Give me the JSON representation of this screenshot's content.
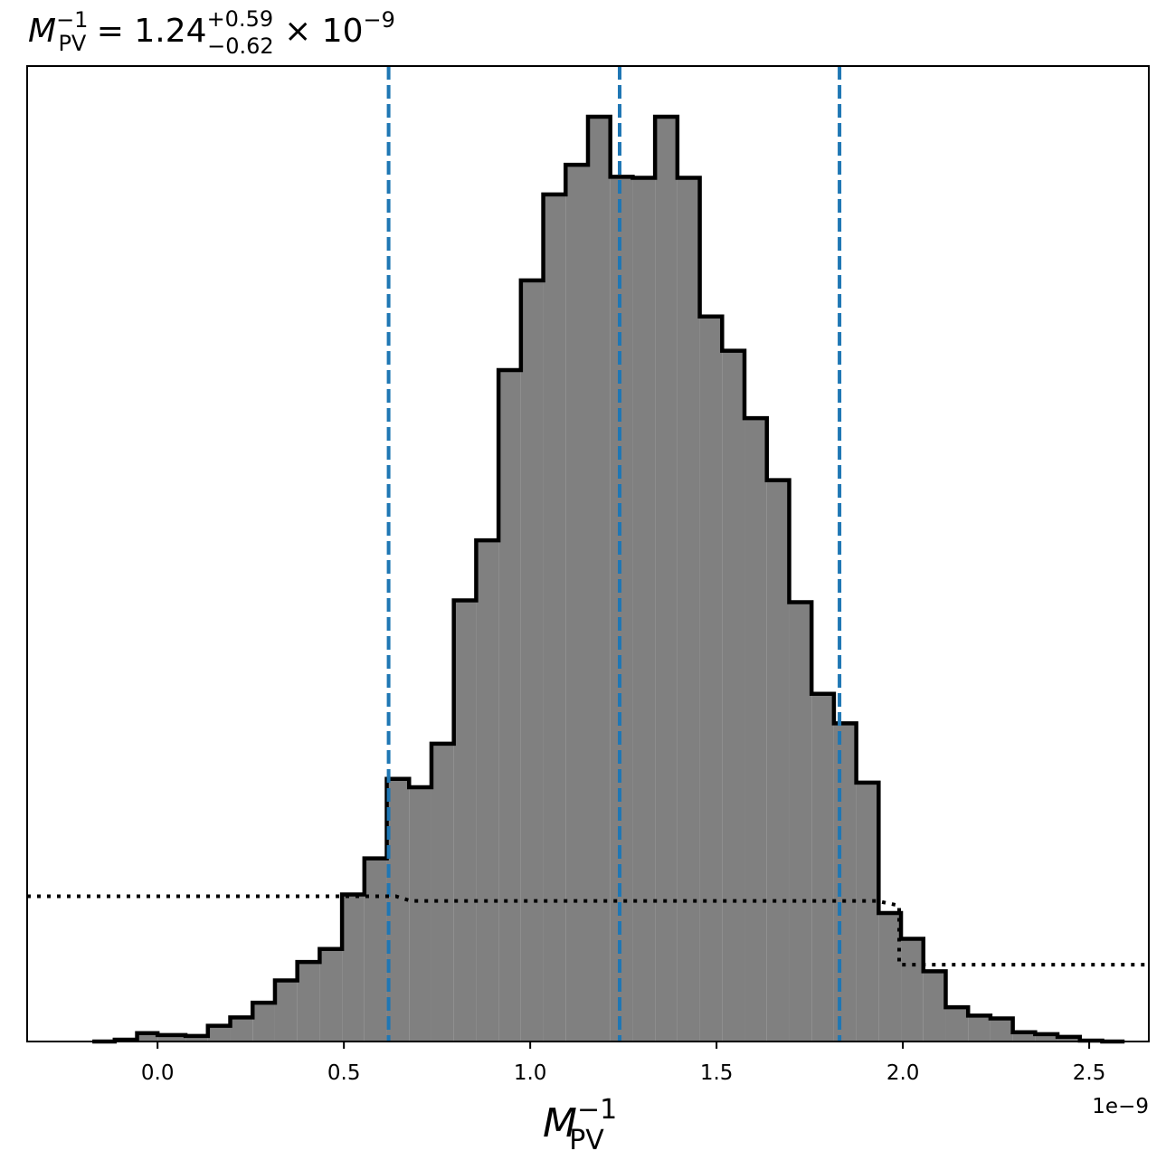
{
  "chart_data": {
    "type": "histogram",
    "title": {
      "symbol": "M",
      "subscript": "PV",
      "superscript": "−1",
      "equals": " = ",
      "median": "1.24",
      "upper": "+0.59",
      "lower": "−0.62",
      "scale": " × 10",
      "scale_exp": "−9"
    },
    "xlabel": {
      "symbol": "M",
      "subscript": "PV",
      "superscript": "−1"
    },
    "x_offset_label": "1e−9",
    "xlim": [
      -0.35,
      2.66
    ],
    "ylim": [
      0,
      1.0
    ],
    "x_ticks": [
      0.0,
      0.5,
      1.0,
      1.5,
      2.0,
      2.5
    ],
    "x_tick_labels": [
      "0.0",
      "0.5",
      "1.0",
      "1.5",
      "2.0",
      "2.5"
    ],
    "y_ticks_visible": false,
    "bin_edges": [
      -0.175,
      -0.115,
      -0.055,
      0.0,
      0.075,
      0.135,
      0.195,
      0.255,
      0.315,
      0.375,
      0.435,
      0.495,
      0.555,
      0.615,
      0.675,
      0.735,
      0.795,
      0.855,
      0.915,
      0.975,
      1.035,
      1.095,
      1.155,
      1.215,
      1.275,
      1.335,
      1.395,
      1.455,
      1.515,
      1.575,
      1.635,
      1.695,
      1.755,
      1.815,
      1.875,
      1.935,
      1.995,
      2.055,
      2.115,
      2.175,
      2.235,
      2.295,
      2.355,
      2.415,
      2.475,
      2.535,
      2.595
    ],
    "counts": [
      0.0,
      0.002,
      0.009,
      0.007,
      0.006,
      0.017,
      0.026,
      0.042,
      0.066,
      0.086,
      0.1,
      0.159,
      0.198,
      0.284,
      0.275,
      0.322,
      0.477,
      0.542,
      0.726,
      0.823,
      0.916,
      0.948,
      1.0,
      0.935,
      0.934,
      1.0,
      0.934,
      0.784,
      0.747,
      0.674,
      0.607,
      0.475,
      0.376,
      0.344,
      0.28,
      0.139,
      0.111,
      0.076,
      0.037,
      0.028,
      0.025,
      0.01,
      0.008,
      0.005,
      0.001,
      0.0
    ],
    "fill_color": "#808080",
    "edge_color": "#000000",
    "quantile_lines": [
      0.62,
      1.24,
      1.83
    ],
    "quantile_line_color": "#1f77b4",
    "quantile_line_style": "dashed",
    "prior_curve": {
      "style": "dotted",
      "color": "#000000",
      "x": [
        -0.35,
        0.64,
        0.68,
        1.93,
        1.99,
        1.99,
        2.66
      ],
      "y": [
        0.157,
        0.157,
        0.152,
        0.152,
        0.147,
        0.083,
        0.083
      ]
    }
  }
}
